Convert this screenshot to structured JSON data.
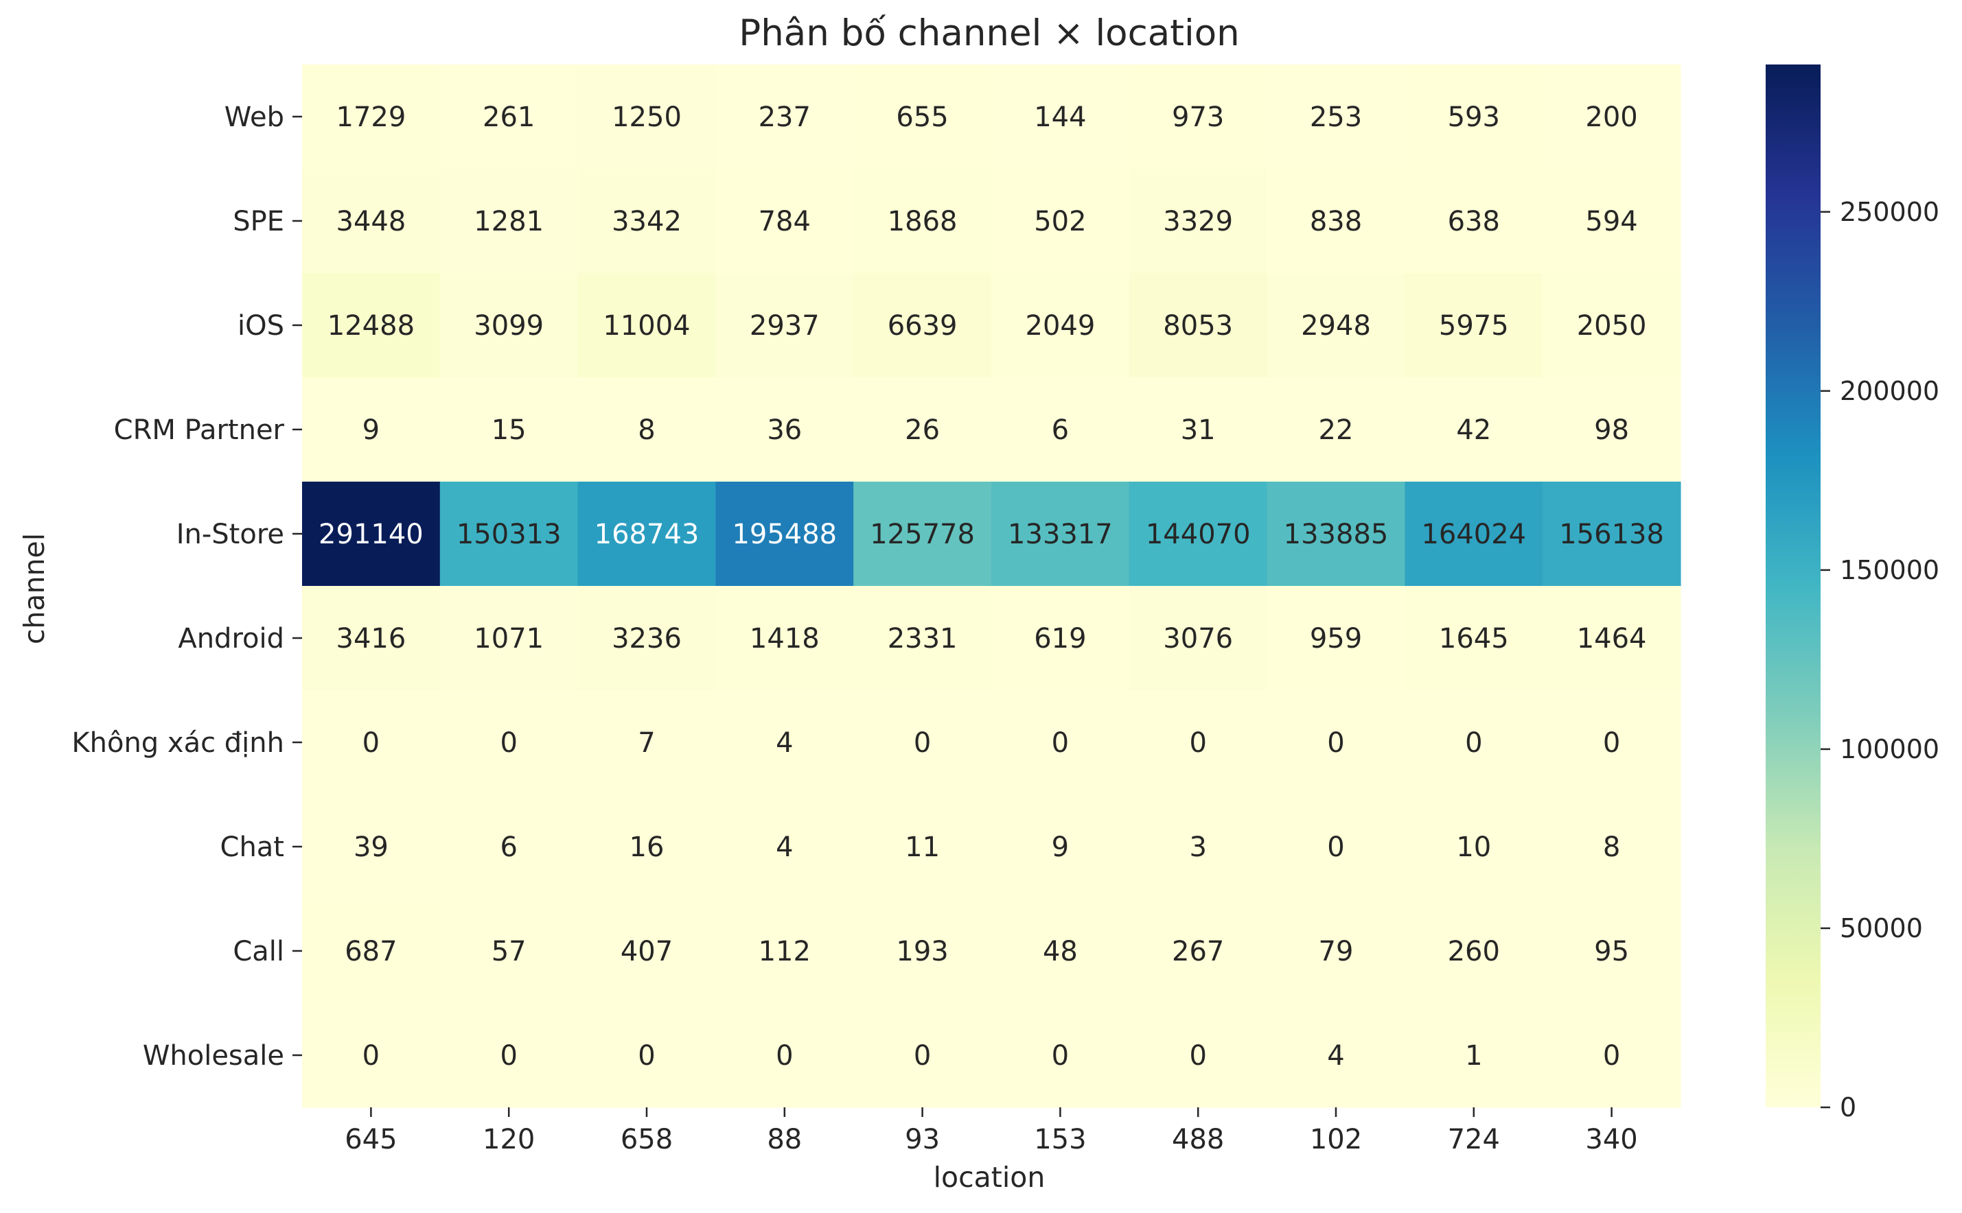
{
  "chart_data": {
    "type": "heatmap",
    "title": "Phân bố channel × location",
    "xlabel": "location",
    "ylabel": "channel",
    "x_categories": [
      "645",
      "120",
      "658",
      "88",
      "93",
      "153",
      "488",
      "102",
      "724",
      "340"
    ],
    "y_categories": [
      "Web",
      "SPE",
      "iOS",
      "CRM Partner",
      "In-Store",
      "Android",
      "Không xác định",
      "Chat",
      "Call",
      "Wholesale"
    ],
    "values": [
      [
        1729,
        261,
        1250,
        237,
        655,
        144,
        973,
        253,
        593,
        200
      ],
      [
        3448,
        1281,
        3342,
        784,
        1868,
        502,
        3329,
        838,
        638,
        594
      ],
      [
        12488,
        3099,
        11004,
        2937,
        6639,
        2049,
        8053,
        2948,
        5975,
        2050
      ],
      [
        9,
        15,
        8,
        36,
        26,
        6,
        31,
        22,
        42,
        98
      ],
      [
        291140,
        150313,
        168743,
        195488,
        125778,
        133317,
        144070,
        133885,
        164024,
        156138
      ],
      [
        3416,
        1071,
        3236,
        1418,
        2331,
        619,
        3076,
        959,
        1645,
        1464
      ],
      [
        0,
        0,
        7,
        4,
        0,
        0,
        0,
        0,
        0,
        0
      ],
      [
        39,
        6,
        16,
        4,
        11,
        9,
        3,
        0,
        10,
        8
      ],
      [
        687,
        57,
        407,
        112,
        193,
        48,
        267,
        79,
        260,
        95
      ],
      [
        0,
        0,
        0,
        0,
        0,
        0,
        0,
        4,
        1,
        0
      ]
    ],
    "colorbar": {
      "min": 0,
      "max": 291140,
      "ticks": [
        0,
        50000,
        100000,
        150000,
        200000,
        250000
      ],
      "tick_labels": [
        "0",
        "50000",
        "100000",
        "150000",
        "200000",
        "250000"
      ],
      "colormap": "YlGnBu"
    },
    "colors": {
      "colormap_stops": [
        "#ffffd9",
        "#edf8b1",
        "#c7e9b4",
        "#7fcdbb",
        "#41b6c4",
        "#1d91c0",
        "#225ea8",
        "#253494",
        "#081d58"
      ]
    }
  }
}
